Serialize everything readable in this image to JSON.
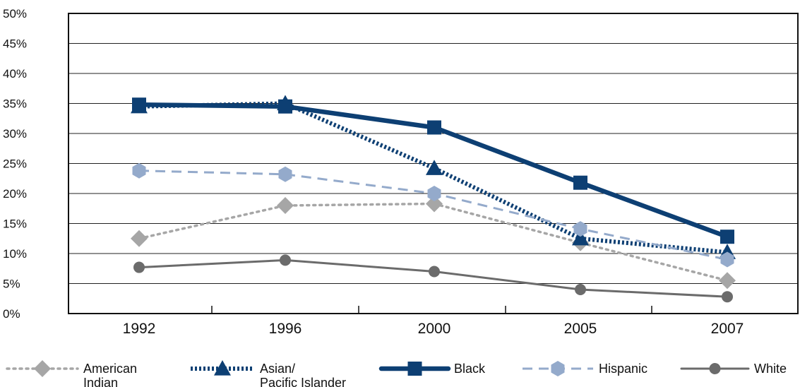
{
  "chart_data": {
    "type": "line",
    "categories": [
      "1992",
      "1996",
      "2000",
      "2005",
      "2007"
    ],
    "y_ticks": [
      "0%",
      "5%",
      "10%",
      "15%",
      "20%",
      "25%",
      "30%",
      "35%",
      "40%",
      "45%",
      "50%"
    ],
    "ylim": [
      0,
      50
    ],
    "grid": true,
    "legend_position": "bottom",
    "series": [
      {
        "name": [
          "American",
          "Indian"
        ],
        "values": [
          12.5,
          18,
          18.3,
          11.8,
          5.5
        ],
        "color": "#a6a6a6",
        "marker": "diamond",
        "dash": "dotted"
      },
      {
        "name": [
          "Asian/",
          "Pacific Islander"
        ],
        "values": [
          34.5,
          35.0,
          24.2,
          12.5,
          10.2
        ],
        "color": "#0d3f73",
        "marker": "triangle",
        "dash": "thick-dotted"
      },
      {
        "name": [
          "Black"
        ],
        "values": [
          34.8,
          34.5,
          31.0,
          21.8,
          12.8
        ],
        "color": "#0d3f73",
        "marker": "square",
        "dash": "solid"
      },
      {
        "name": [
          "Hispanic"
        ],
        "values": [
          23.8,
          23.2,
          20.0,
          14.1,
          9.0
        ],
        "color": "#94aacb",
        "marker": "hexagon",
        "dash": "dashed"
      },
      {
        "name": [
          "White"
        ],
        "values": [
          7.7,
          8.9,
          7.0,
          4.0,
          2.8
        ],
        "color": "#6b6b6b",
        "marker": "circle",
        "dash": "solid-thin"
      }
    ]
  }
}
